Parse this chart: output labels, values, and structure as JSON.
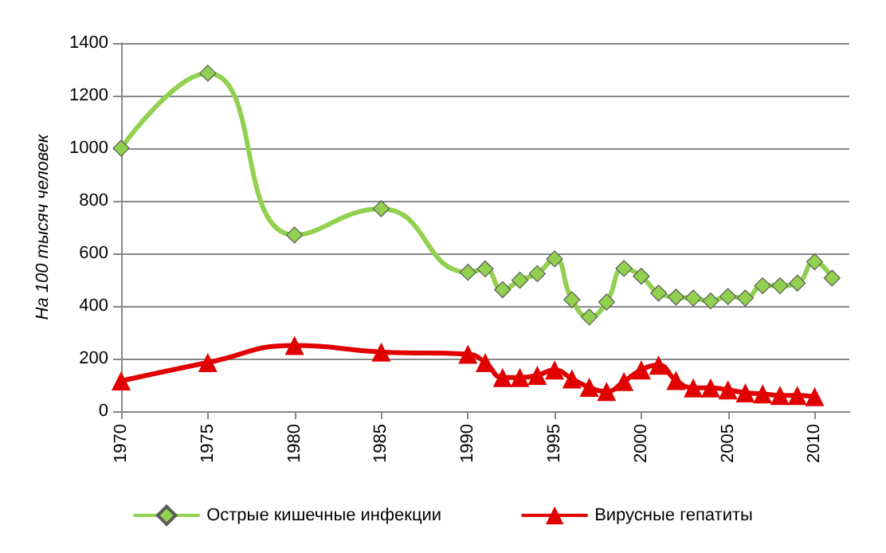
{
  "chart_data": {
    "type": "line",
    "ylabel": "На 100 тысяч человек",
    "x": [
      1970,
      1975,
      1980,
      1985,
      1990,
      1991,
      1992,
      1993,
      1994,
      1995,
      1996,
      1997,
      1998,
      1999,
      2000,
      2001,
      2002,
      2003,
      2004,
      2005,
      2006,
      2007,
      2008,
      2009,
      2010,
      2011
    ],
    "series": [
      {
        "name": "Острые кишечные инфекции",
        "color": "#92d050",
        "marker": "diamond",
        "values": [
          1000,
          1285,
          670,
          770,
          528,
          541,
          462,
          498,
          523,
          579,
          424,
          358,
          415,
          543,
          513,
          449,
          434,
          430,
          419,
          436,
          430,
          477,
          477,
          487,
          568,
          506
        ]
      },
      {
        "name": "Вирусные гепатиты",
        "color": "#e00000",
        "marker": "triangle",
        "values": [
          115,
          185,
          250,
          225,
          217,
          185,
          128,
          128,
          136,
          157,
          123,
          91,
          75,
          113,
          157,
          175,
          117,
          89,
          89,
          81,
          70,
          66,
          60,
          60,
          55,
          null
        ]
      }
    ],
    "xlim": [
      1970,
      2012
    ],
    "xticks": [
      1970,
      1975,
      1980,
      1985,
      1990,
      1995,
      2000,
      2005,
      2010
    ],
    "ylim": [
      0,
      1400
    ],
    "yticks": [
      0,
      200,
      400,
      600,
      800,
      1000,
      1200,
      1400
    ],
    "grid": "y",
    "legend": "bottom",
    "line_style": "solid"
  }
}
